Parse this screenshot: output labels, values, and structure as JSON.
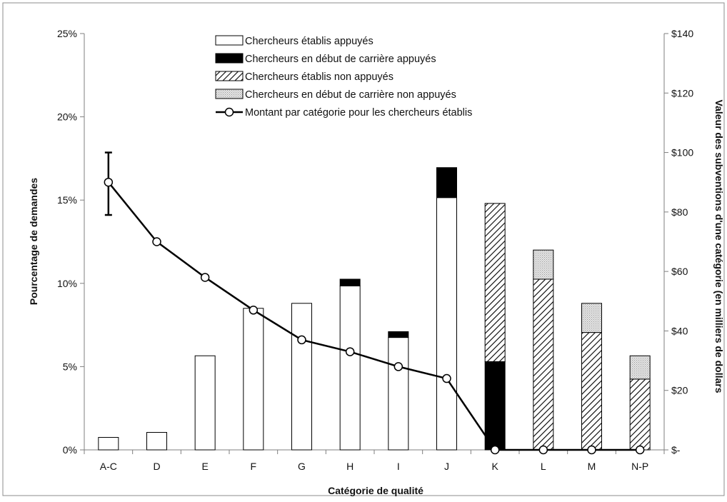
{
  "chart_data": {
    "type": "bar",
    "categories": [
      "A-C",
      "D",
      "E",
      "F",
      "G",
      "H",
      "I",
      "J",
      "K",
      "L",
      "M",
      "N-P"
    ],
    "series": [
      {
        "name": "Chercheurs établis appuyés",
        "type": "bar",
        "axis": "left",
        "values": [
          0.75,
          1.05,
          5.65,
          8.5,
          8.8,
          9.85,
          6.75,
          15.15,
          0,
          0,
          0,
          0
        ]
      },
      {
        "name": "Chercheurs en début de carrière appuyés",
        "type": "bar",
        "axis": "left",
        "values": [
          0,
          0,
          0,
          0,
          0,
          0.4,
          0.35,
          1.8,
          5.3,
          0,
          0,
          0
        ]
      },
      {
        "name": "Chercheurs établis non appuyés",
        "type": "bar",
        "axis": "left",
        "values": [
          0,
          0,
          0,
          0,
          0,
          0,
          0,
          0,
          9.5,
          10.25,
          7.05,
          4.25
        ]
      },
      {
        "name": "Chercheurs en début de carrière non appuyés",
        "type": "bar",
        "axis": "left",
        "values": [
          0,
          0,
          0,
          0,
          0,
          0,
          0,
          0,
          0,
          1.75,
          1.75,
          1.4
        ]
      },
      {
        "name": "Montant par catégorie pour les chercheurs établis",
        "type": "line",
        "axis": "right",
        "values": [
          90,
          70,
          58,
          47,
          37,
          33,
          28,
          24,
          0,
          0,
          0,
          0
        ],
        "error_bar": {
          "index": 0,
          "low": 79,
          "high": 100
        }
      }
    ],
    "xlabel": "Catégorie de qualité",
    "ylabel": "Pourcentage de demandes",
    "y2label": "Valeur des subventions d'une catégorie (en milliers de dollars",
    "ylim": [
      0,
      25
    ],
    "y2lim": [
      0,
      140
    ],
    "yticks": [
      0,
      5,
      10,
      15,
      20,
      25
    ],
    "ytick_labels": [
      "0%",
      "5%",
      "10%",
      "15%",
      "20%",
      "25%"
    ],
    "y2ticks": [
      0,
      20,
      40,
      60,
      80,
      100,
      120,
      140
    ],
    "y2tick_labels": [
      "$-",
      "$20",
      "$40",
      "$60",
      "$80",
      "$100",
      "$120",
      "$140"
    ],
    "grid": false,
    "legend": "top-center",
    "colors": {
      "established_supported": "#ffffff",
      "early_supported": "#000000",
      "established_unsupported": "hatch",
      "early_unsupported": "#d9d9d9",
      "line": "#000000"
    }
  }
}
